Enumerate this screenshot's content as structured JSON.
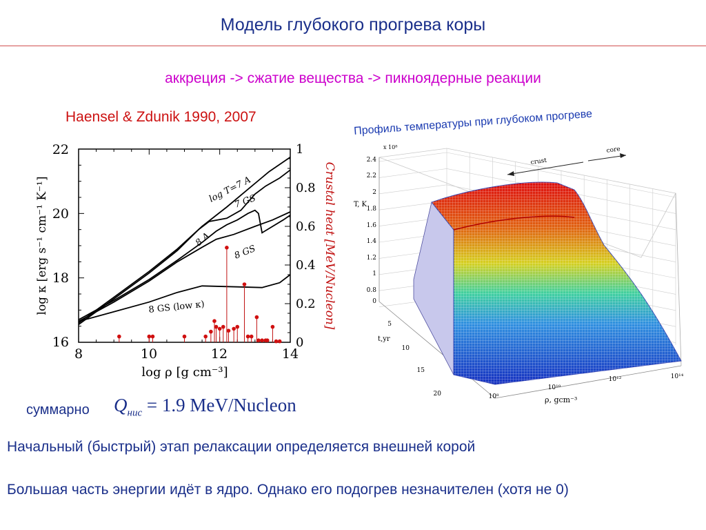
{
  "slide": {
    "title": "Модель глубокого прогрева коры",
    "subtitle": "аккреция  -> сжатие вещества -> пикноядерные реакции",
    "citation": "Haensel & Zdunik 1990, 2007",
    "profile_caption": "Профиль температуры при глубоком прогреве",
    "sum_label": "суммарно",
    "formula": {
      "symbol": "Q",
      "subscript": "нис",
      "equals": "= 1.9 MeV/Nucleon"
    },
    "line1": "Начальный (быстрый) этап релаксации определяется  внешней корой",
    "line2": "Большая часть энергии идёт в ядро. Однако его подогрев незначителен (хотя не 0)"
  },
  "chart_data": [
    {
      "type": "line",
      "xlabel": "log ρ [g cm⁻³]",
      "ylabel": "log κ [erg s⁻¹ cm⁻¹ K⁻¹]",
      "ylabel_right": "Crustal heat [MeV/Nucleon]",
      "xlim": [
        8,
        14
      ],
      "ylim": [
        16,
        22
      ],
      "ylim_right": [
        0,
        1
      ],
      "x_ticks": [
        "8",
        "10",
        "12",
        "14"
      ],
      "y_ticks": [
        "16",
        "18",
        "20",
        "22"
      ],
      "y_ticks_right": [
        "0",
        "0.2",
        "0.4",
        "0.6",
        "0.8",
        "1"
      ],
      "curve_labels": [
        "log T=7 A",
        "7 GS",
        "8 A",
        "8 GS",
        "8 GS (low κ)"
      ],
      "series": [
        {
          "name": "log T=7 A",
          "points": [
            [
              8.0,
              16.6
            ],
            [
              9.0,
              17.4
            ],
            [
              10.0,
              18.2
            ],
            [
              10.8,
              18.9
            ],
            [
              11.5,
              19.6
            ],
            [
              12.2,
              20.2
            ],
            [
              12.8,
              20.75
            ],
            [
              13.4,
              21.3
            ],
            [
              14.0,
              21.75
            ]
          ]
        },
        {
          "name": "7 GS",
          "points": [
            [
              8.0,
              16.55
            ],
            [
              9.0,
              17.35
            ],
            [
              10.0,
              18.15
            ],
            [
              10.8,
              18.85
            ],
            [
              11.4,
              19.5
            ],
            [
              11.7,
              19.75
            ],
            [
              12.2,
              19.85
            ],
            [
              12.6,
              20.1
            ],
            [
              13.0,
              20.6
            ],
            [
              13.3,
              20.85
            ],
            [
              13.7,
              21.1
            ],
            [
              14.0,
              21.35
            ]
          ]
        },
        {
          "name": "8 A",
          "points": [
            [
              8.0,
              16.7
            ],
            [
              9.0,
              17.3
            ],
            [
              10.0,
              17.95
            ],
            [
              10.8,
              18.55
            ],
            [
              11.5,
              19.1
            ],
            [
              11.9,
              19.45
            ],
            [
              12.2,
              19.65
            ],
            [
              12.5,
              19.8
            ],
            [
              12.8,
              20.0
            ],
            [
              13.0,
              20.1
            ],
            [
              13.1,
              20.0
            ],
            [
              13.2,
              19.4
            ],
            [
              13.8,
              19.8
            ],
            [
              14.0,
              19.95
            ]
          ]
        },
        {
          "name": "8 GS",
          "points": [
            [
              8.0,
              16.65
            ],
            [
              9.0,
              17.25
            ],
            [
              10.0,
              17.9
            ],
            [
              10.8,
              18.5
            ],
            [
              11.5,
              18.95
            ],
            [
              11.9,
              19.2
            ],
            [
              12.4,
              19.35
            ],
            [
              13.0,
              19.6
            ],
            [
              13.5,
              19.8
            ],
            [
              14.0,
              20.05
            ]
          ]
        },
        {
          "name": "8 GS (low κ)",
          "points": [
            [
              8.0,
              16.65
            ],
            [
              9.0,
              16.95
            ],
            [
              10.0,
              17.25
            ],
            [
              10.8,
              17.55
            ],
            [
              11.5,
              17.75
            ],
            [
              12.5,
              17.72
            ],
            [
              13.2,
              17.7
            ],
            [
              13.7,
              17.85
            ],
            [
              14.0,
              18.1
            ]
          ]
        }
      ],
      "heat_stems": [
        [
          9.15,
          0.03
        ],
        [
          10.0,
          0.03
        ],
        [
          10.1,
          0.03
        ],
        [
          11.0,
          0.03
        ],
        [
          11.6,
          0.03
        ],
        [
          11.75,
          0.055
        ],
        [
          11.85,
          0.11
        ],
        [
          11.9,
          0.08
        ],
        [
          12.0,
          0.07
        ],
        [
          12.1,
          0.08
        ],
        [
          12.2,
          0.49
        ],
        [
          12.25,
          0.06
        ],
        [
          12.4,
          0.07
        ],
        [
          12.5,
          0.08
        ],
        [
          12.7,
          0.3
        ],
        [
          12.8,
          0.03
        ],
        [
          12.9,
          0.03
        ],
        [
          13.05,
          0.13
        ],
        [
          13.1,
          0.01
        ],
        [
          13.2,
          0.01
        ],
        [
          13.3,
          0.01
        ],
        [
          13.35,
          0.01
        ],
        [
          13.5,
          0.08
        ],
        [
          13.6,
          0.005
        ],
        [
          13.7,
          0.005
        ]
      ]
    },
    {
      "type": "surface-3d",
      "xlabel": "ρ, gcm⁻³",
      "ylabel": "t,yr",
      "zlabel": "T, K",
      "z_multiplier": "x 10⁸",
      "z_ticks": [
        "0",
        "0.8",
        "1",
        "1.2",
        "1.4",
        "1.6",
        "1.8",
        "2",
        "2.2",
        "2.4"
      ],
      "y_ticks": [
        "5",
        "10",
        "15",
        "20"
      ],
      "x_ticks": [
        "10⁸",
        "10¹⁰",
        "10¹²",
        "10¹⁴"
      ],
      "annotations": [
        "crust",
        "core"
      ]
    }
  ]
}
